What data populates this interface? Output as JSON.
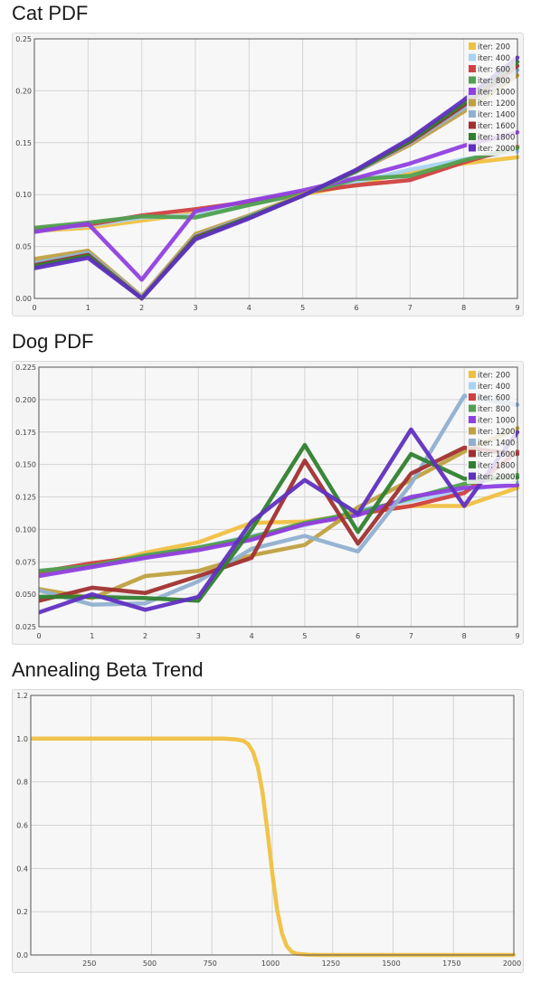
{
  "charts": [
    {
      "title": "Cat PDF",
      "chart_data": {
        "type": "line",
        "x": [
          0,
          1,
          2,
          3,
          4,
          5,
          6,
          7,
          8,
          9
        ],
        "xlim": [
          0,
          9
        ],
        "ylim": [
          0,
          0.25
        ],
        "yticks": [
          0,
          0.05,
          0.1,
          0.15,
          0.2,
          0.25
        ],
        "ytick_labels": [
          "0.00",
          "0.05",
          "0.10",
          "0.15",
          "0.20",
          "0.25"
        ],
        "xticks": [
          0,
          1,
          2,
          3,
          4,
          5,
          6,
          7,
          8,
          9
        ],
        "xtick_labels": [
          "0",
          "1",
          "2",
          "3",
          "4",
          "5",
          "6",
          "7",
          "8",
          "9"
        ],
        "legend_position": "top-right",
        "grid": true,
        "series": [
          {
            "name": "iter: 200",
            "color": "#f0c040",
            "values": [
              0.065,
              0.068,
              0.075,
              0.082,
              0.092,
              0.1,
              0.11,
              0.122,
              0.13,
              0.136
            ]
          },
          {
            "name": "iter: 400",
            "color": "#a8d4f0",
            "values": [
              0.066,
              0.07,
              0.078,
              0.08,
              0.09,
              0.101,
              0.112,
              0.124,
              0.134,
              0.142
            ]
          },
          {
            "name": "iter: 600",
            "color": "#d04040",
            "values": [
              0.067,
              0.071,
              0.08,
              0.086,
              0.093,
              0.102,
              0.109,
              0.114,
              0.131,
              0.146
            ]
          },
          {
            "name": "iter: 800",
            "color": "#50a050",
            "values": [
              0.068,
              0.073,
              0.079,
              0.078,
              0.09,
              0.101,
              0.115,
              0.118,
              0.133,
              0.145
            ]
          },
          {
            "name": "iter: 1000",
            "color": "#9040e0",
            "values": [
              0.064,
              0.072,
              0.018,
              0.084,
              0.094,
              0.104,
              0.116,
              0.13,
              0.147,
              0.16
            ]
          },
          {
            "name": "iter: 1200",
            "color": "#c0a040",
            "values": [
              0.038,
              0.046,
              0.002,
              0.062,
              0.08,
              0.1,
              0.122,
              0.148,
              0.18,
              0.215
            ]
          },
          {
            "name": "iter: 1400",
            "color": "#90b0d0",
            "values": [
              0.034,
              0.044,
              0.001,
              0.06,
              0.079,
              0.099,
              0.122,
              0.15,
              0.183,
              0.22
            ]
          },
          {
            "name": "iter: 1600",
            "color": "#a03030",
            "values": [
              0.032,
              0.042,
              0.0,
              0.059,
              0.078,
              0.099,
              0.123,
              0.151,
              0.186,
              0.224
            ]
          },
          {
            "name": "iter: 1800",
            "color": "#308030",
            "values": [
              0.031,
              0.041,
              0.0,
              0.058,
              0.078,
              0.099,
              0.123,
              0.152,
              0.188,
              0.228
            ]
          },
          {
            "name": "iter: 2000",
            "color": "#6030c0",
            "values": [
              0.029,
              0.039,
              0.0,
              0.057,
              0.077,
              0.099,
              0.124,
              0.154,
              0.191,
              0.232
            ]
          }
        ]
      }
    },
    {
      "title": "Dog PDF",
      "chart_data": {
        "type": "line",
        "x": [
          0,
          1,
          2,
          3,
          4,
          5,
          6,
          7,
          8,
          9
        ],
        "xlim": [
          0,
          9
        ],
        "ylim": [
          0.025,
          0.225
        ],
        "yticks": [
          0.025,
          0.05,
          0.075,
          0.1,
          0.125,
          0.15,
          0.175,
          0.2,
          0.225
        ],
        "ytick_labels": [
          "0.025",
          "0.050",
          "0.075",
          "0.100",
          "0.125",
          "0.150",
          "0.175",
          "0.200",
          "0.225"
        ],
        "xticks": [
          0,
          1,
          2,
          3,
          4,
          5,
          6,
          7,
          8,
          9
        ],
        "xtick_labels": [
          "0",
          "1",
          "2",
          "3",
          "4",
          "5",
          "6",
          "7",
          "8",
          "9"
        ],
        "legend_position": "top-right",
        "grid": true,
        "series": [
          {
            "name": "iter: 200",
            "color": "#f0c040",
            "values": [
              0.065,
              0.072,
              0.082,
              0.09,
              0.105,
              0.106,
              0.112,
              0.118,
              0.118,
              0.132
            ]
          },
          {
            "name": "iter: 400",
            "color": "#a8d4f0",
            "values": [
              0.066,
              0.072,
              0.08,
              0.086,
              0.095,
              0.103,
              0.115,
              0.122,
              0.13,
              0.136
            ]
          },
          {
            "name": "iter: 600",
            "color": "#d04040",
            "values": [
              0.067,
              0.074,
              0.079,
              0.085,
              0.093,
              0.104,
              0.112,
              0.118,
              0.128,
              0.16
            ]
          },
          {
            "name": "iter: 800",
            "color": "#50a050",
            "values": [
              0.068,
              0.072,
              0.08,
              0.086,
              0.094,
              0.105,
              0.113,
              0.124,
              0.135,
              0.142
            ]
          },
          {
            "name": "iter: 1000",
            "color": "#9040e0",
            "values": [
              0.064,
              0.071,
              0.078,
              0.084,
              0.092,
              0.104,
              0.111,
              0.125,
              0.132,
              0.134
            ]
          },
          {
            "name": "iter: 1200",
            "color": "#c0a040",
            "values": [
              0.054,
              0.047,
              0.064,
              0.068,
              0.08,
              0.088,
              0.117,
              0.138,
              0.16,
              0.178
            ]
          },
          {
            "name": "iter: 1400",
            "color": "#90b0d0",
            "values": [
              0.053,
              0.042,
              0.043,
              0.06,
              0.085,
              0.095,
              0.083,
              0.135,
              0.203,
              0.196
            ]
          },
          {
            "name": "iter: 1600",
            "color": "#a03030",
            "values": [
              0.045,
              0.055,
              0.051,
              0.064,
              0.078,
              0.153,
              0.089,
              0.143,
              0.163,
              0.158
            ]
          },
          {
            "name": "iter: 1800",
            "color": "#308030",
            "values": [
              0.048,
              0.048,
              0.047,
              0.045,
              0.1,
              0.165,
              0.098,
              0.158,
              0.139,
              0.14
            ]
          },
          {
            "name": "iter: 2000",
            "color": "#6030c0",
            "values": [
              0.036,
              0.05,
              0.038,
              0.048,
              0.106,
              0.138,
              0.112,
              0.177,
              0.118,
              0.175
            ]
          }
        ]
      }
    },
    {
      "title": "Annealing Beta Trend",
      "chart_data": {
        "type": "line",
        "xlim": [
          0,
          2000
        ],
        "ylim": [
          0,
          1.2
        ],
        "yticks": [
          0,
          0.2,
          0.4,
          0.6,
          0.8,
          1.0,
          1.2
        ],
        "ytick_labels": [
          "0.0",
          "0.2",
          "0.4",
          "0.6",
          "0.8",
          "1.0",
          "1.2"
        ],
        "xticks": [
          250,
          500,
          750,
          1000,
          1250,
          1500,
          1750,
          2000
        ],
        "xtick_labels": [
          "250",
          "500",
          "750",
          "1000",
          "1250",
          "1500",
          "1750",
          "2000"
        ],
        "grid": true,
        "series": [
          {
            "color": "#f0c040",
            "x": [
              0,
              800,
              850,
              880,
              900,
              920,
              940,
              960,
              980,
              1000,
              1020,
              1040,
              1060,
              1080,
              1100,
              1150,
              1200,
              2000
            ],
            "values": [
              1.0,
              1.0,
              0.997,
              0.99,
              0.975,
              0.94,
              0.87,
              0.75,
              0.57,
              0.38,
              0.21,
              0.1,
              0.04,
              0.015,
              0.006,
              0.001,
              0.0,
              0.0
            ]
          }
        ]
      }
    }
  ]
}
